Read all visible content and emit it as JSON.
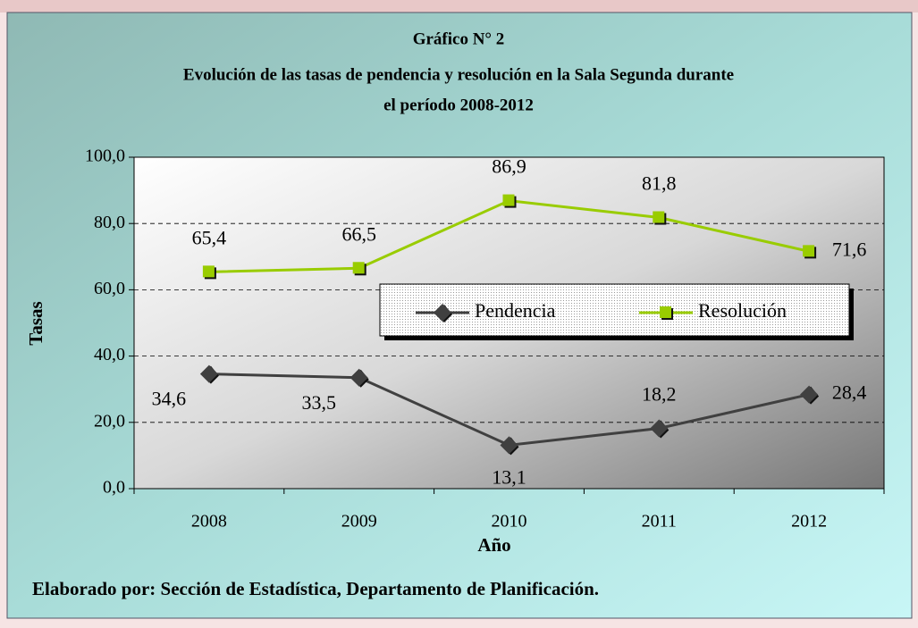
{
  "chart_data": {
    "type": "line",
    "title": [
      "Gráfico N° 2",
      "Evolución de las tasas de pendencia y resolución en la Sala Segunda durante",
      "el período 2008-2012"
    ],
    "x_label": "Año",
    "y_label": "Tasas",
    "note": "Elaborado por: Sección de Estadística, Departamento de Planificación.",
    "categories": [
      "2008",
      "2009",
      "2010",
      "2011",
      "2012"
    ],
    "series": [
      {
        "name": "Pendencia",
        "color": "#404040",
        "marker": "diamond",
        "values": [
          34.6,
          33.5,
          13.1,
          18.2,
          28.4
        ],
        "value_labels": [
          "34,6",
          "33,5",
          "13,1",
          "18,2",
          "28,4"
        ]
      },
      {
        "name": "Resolución",
        "color": "#99cc00",
        "marker": "square",
        "values": [
          65.4,
          66.5,
          86.9,
          81.8,
          71.6
        ],
        "value_labels": [
          "65,4",
          "66,5",
          "86,9",
          "81,8",
          "71,6"
        ]
      }
    ],
    "ylim": [
      0,
      100
    ],
    "yticks": [
      {
        "value": 0,
        "label": "0,0"
      },
      {
        "value": 20,
        "label": "20,0"
      },
      {
        "value": 40,
        "label": "40,0"
      },
      {
        "value": 60,
        "label": "60,0"
      },
      {
        "value": 80,
        "label": "80,0"
      },
      {
        "value": 100,
        "label": "100,0"
      }
    ],
    "grid": true
  }
}
